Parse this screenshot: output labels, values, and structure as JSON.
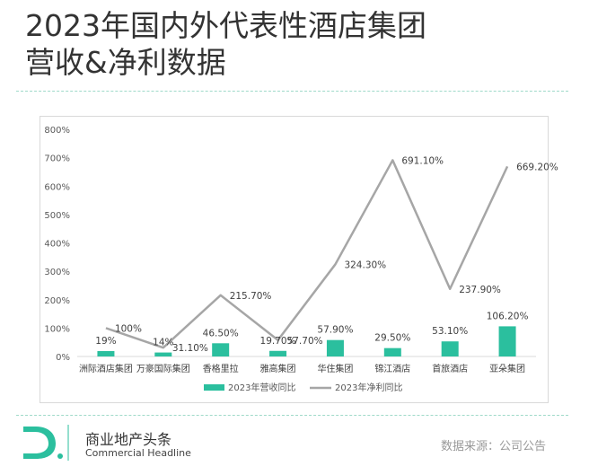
{
  "title_line1": "2023年国内外代表性酒店集团",
  "title_line2": "营收&净利数据",
  "brand_cn": "商业地产头条",
  "brand_en": "Commercial Headline",
  "source": "数据来源：公司公告",
  "colors": {
    "bar": "#2bbf9e",
    "line": "#a6a6a6",
    "divider": "#9fd9c9"
  },
  "chart_data": {
    "type": "bar",
    "categories": [
      "洲际酒店集团",
      "万豪国际集团",
      "香格里拉",
      "雅高集团",
      "华住集团",
      "锦江酒店",
      "首旅酒店",
      "亚朵集团"
    ],
    "y_ticks": [
      "0%",
      "100%",
      "200%",
      "300%",
      "400%",
      "500%",
      "600%",
      "700%",
      "800%"
    ],
    "ylim": [
      0,
      800
    ],
    "grid": false,
    "legend_position": "bottom",
    "series": [
      {
        "name": "2023年营收同比",
        "type": "bar",
        "values": [
          19,
          14,
          46.5,
          19.7,
          57.9,
          29.5,
          53.1,
          106.2
        ],
        "labels": [
          "19%",
          "14%",
          "46.50%",
          "19.70%",
          "57.90%",
          "29.50%",
          "53.10%",
          "106.20%"
        ]
      },
      {
        "name": "2023年净利同比",
        "type": "line",
        "values": [
          100,
          31.1,
          215.7,
          57.7,
          324.3,
          691.1,
          237.9,
          669.2
        ],
        "labels": [
          "100%",
          "31.10%",
          "215.70%",
          "57.70%",
          "324.30%",
          "691.10%",
          "237.90%",
          "669.20%"
        ]
      }
    ]
  }
}
